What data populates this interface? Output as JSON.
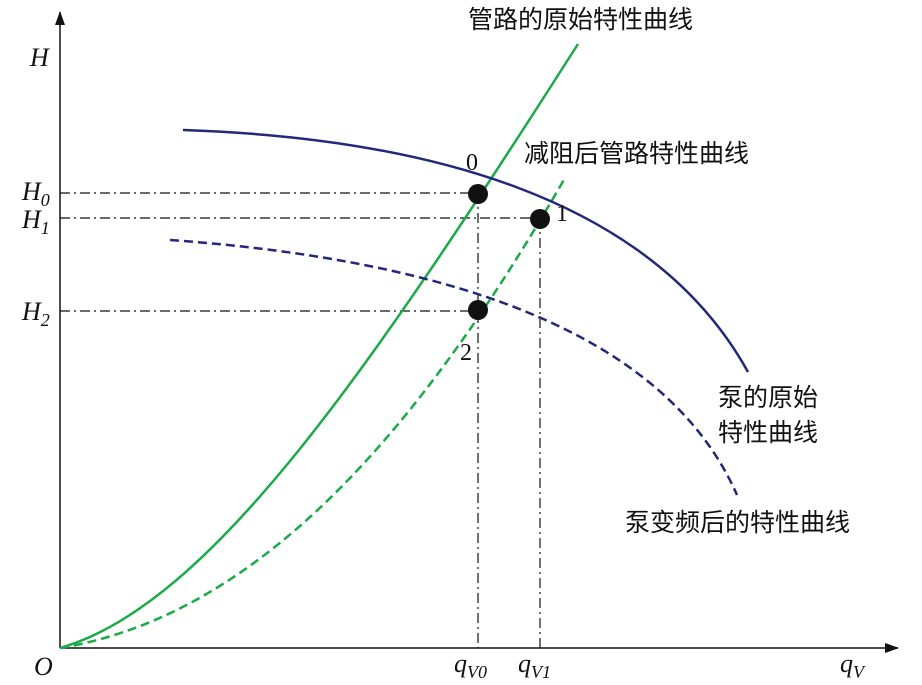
{
  "axes": {
    "y_label": "H",
    "origin": "O",
    "x_label": {
      "symbol": "q",
      "subscript": "V"
    }
  },
  "y_marks": [
    {
      "symbol": "H",
      "subscript": "0"
    },
    {
      "symbol": "H",
      "subscript": "1"
    },
    {
      "symbol": "H",
      "subscript": "2"
    }
  ],
  "x_marks": [
    {
      "symbol": "q",
      "subscript": "V0"
    },
    {
      "symbol": "q",
      "subscript": "V1"
    }
  ],
  "points": [
    "0",
    "1",
    "2"
  ],
  "curves": {
    "pipe_original": "管路的原始特性曲线",
    "pipe_reduced": "减阻后管路特性曲线",
    "pump_original": [
      "泵的原始",
      "特性曲线"
    ],
    "pump_vfd": "泵变频后的特性曲线"
  }
}
